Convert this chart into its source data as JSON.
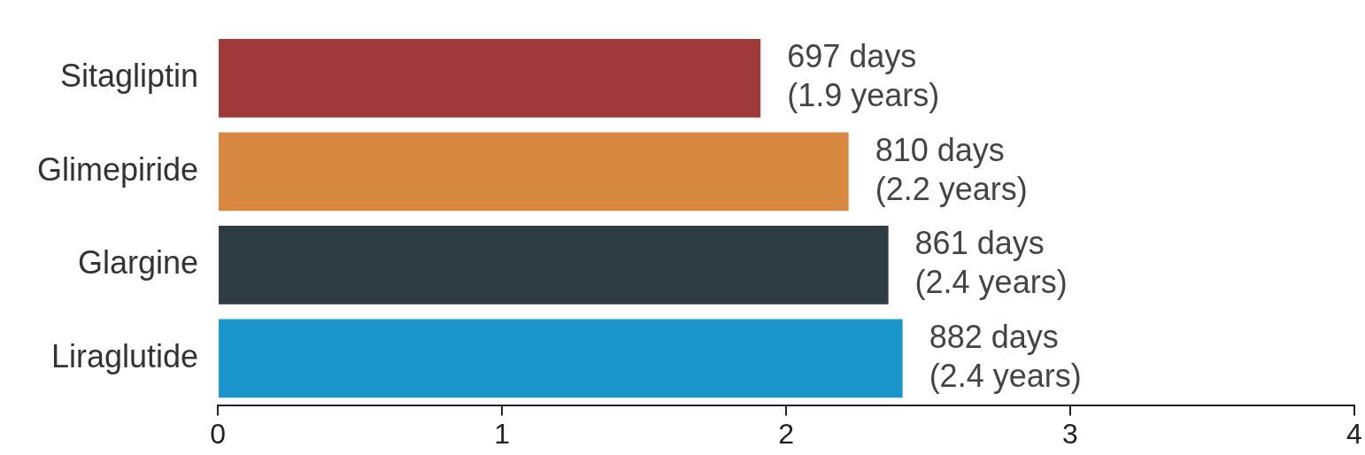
{
  "chart_data": {
    "type": "bar",
    "orientation": "horizontal",
    "categories": [
      "Sitagliptin",
      "Glimepiride",
      "Glargine",
      "Liraglutide"
    ],
    "values": [
      1.91,
      2.22,
      2.36,
      2.41
    ],
    "colors": [
      "#a03a3a",
      "#d88840",
      "#2d3b42",
      "#1a96cc"
    ],
    "value_labels": [
      "697 days\n(1.9 years)",
      "810 days\n(2.2 years)",
      "861 days\n(2.4 years)",
      "882 days\n(2.4 years)"
    ],
    "xlim": [
      0,
      4
    ],
    "xticks": [
      0,
      1,
      2,
      3,
      4
    ],
    "grid": false,
    "legend": false
  }
}
